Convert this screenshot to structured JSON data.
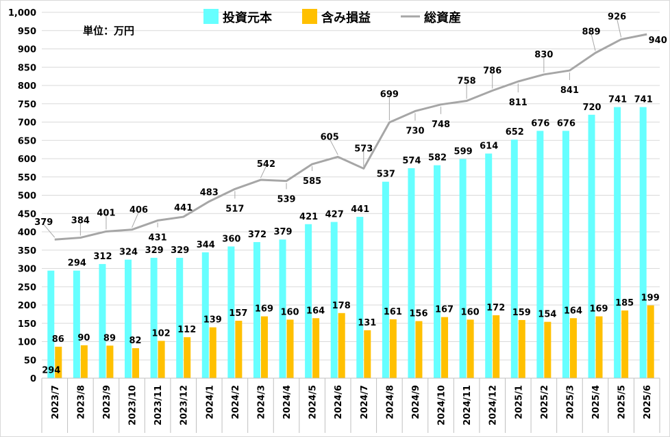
{
  "chart_data": {
    "type": "bar",
    "unit_label": "単位：万円",
    "categories": [
      "2023/7",
      "2023/8",
      "2023/9",
      "2023/10",
      "2023/11",
      "2023/12",
      "2024/1",
      "2024/2",
      "2024/3",
      "2024/4",
      "2024/5",
      "2024/6",
      "2024/7",
      "2024/8",
      "2024/9",
      "2024/10",
      "2024/11",
      "2024/12",
      "2025/1",
      "2025/2",
      "2025/3",
      "2025/4",
      "2025/5",
      "2025/6"
    ],
    "ylim": [
      0,
      1000
    ],
    "yticks": [
      0,
      50,
      100,
      150,
      200,
      250,
      300,
      350,
      400,
      450,
      500,
      550,
      600,
      650,
      700,
      750,
      800,
      850,
      900,
      950,
      1000
    ],
    "ytick_labels": [
      "0",
      "50",
      "100",
      "150",
      "200",
      "250",
      "300",
      "350",
      "400",
      "450",
      "500",
      "550",
      "600",
      "650",
      "700",
      "750",
      "800",
      "850",
      "900",
      "950",
      "1,000"
    ],
    "grid": true,
    "legend_position": "top",
    "series": [
      {
        "name": "投資元本",
        "kind": "bar",
        "color": "#66ffff",
        "values": [
          294,
          294,
          312,
          324,
          329,
          329,
          344,
          360,
          372,
          379,
          421,
          427,
          441,
          537,
          574,
          582,
          599,
          614,
          652,
          676,
          676,
          720,
          741,
          741
        ]
      },
      {
        "name": "含み損益",
        "kind": "bar",
        "color": "#ffc000",
        "values": [
          86,
          90,
          89,
          82,
          102,
          112,
          139,
          157,
          169,
          160,
          164,
          178,
          131,
          161,
          156,
          167,
          160,
          172,
          159,
          154,
          164,
          169,
          185,
          199
        ]
      },
      {
        "name": "総資産",
        "kind": "line",
        "color": "#a6a6a6",
        "values": [
          379,
          384,
          401,
          406,
          431,
          441,
          483,
          517,
          542,
          539,
          585,
          605,
          573,
          699,
          730,
          748,
          758,
          786,
          811,
          830,
          841,
          889,
          926,
          940
        ]
      }
    ]
  }
}
